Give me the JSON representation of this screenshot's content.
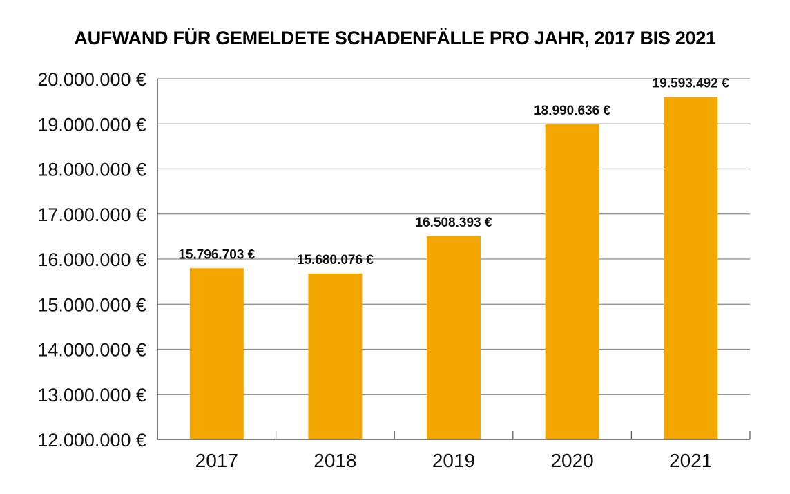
{
  "chart_data": {
    "type": "bar",
    "title": "AUFWAND FÜR GEMELDETE SCHADENFÄLLE PRO JAHR, 2017 BIS 2021",
    "categories": [
      "2017",
      "2018",
      "2019",
      "2020",
      "2021"
    ],
    "values": [
      15796703,
      15680076,
      16508393,
      18990636,
      19593492
    ],
    "value_labels": [
      "15.796.703 €",
      "15.680.076 €",
      "16.508.393 €",
      "18.990.636 €",
      "19.593.492 €"
    ],
    "ylim": [
      12000000,
      20000000
    ],
    "yticks": [
      12000000,
      13000000,
      14000000,
      15000000,
      16000000,
      17000000,
      18000000,
      19000000,
      20000000
    ],
    "ytick_labels": [
      "12.000.000 €",
      "13.000.000 €",
      "14.000.000 €",
      "15.000.000 €",
      "16.000.000 €",
      "17.000.000 €",
      "18.000.000 €",
      "19.000.000 €",
      "20.000.000 €"
    ],
    "xlabel": "",
    "ylabel": "",
    "grid": true,
    "legend": "none",
    "colors": {
      "bar": "#f4a600",
      "grid": "#8a8a8a",
      "text": "#111111"
    }
  }
}
